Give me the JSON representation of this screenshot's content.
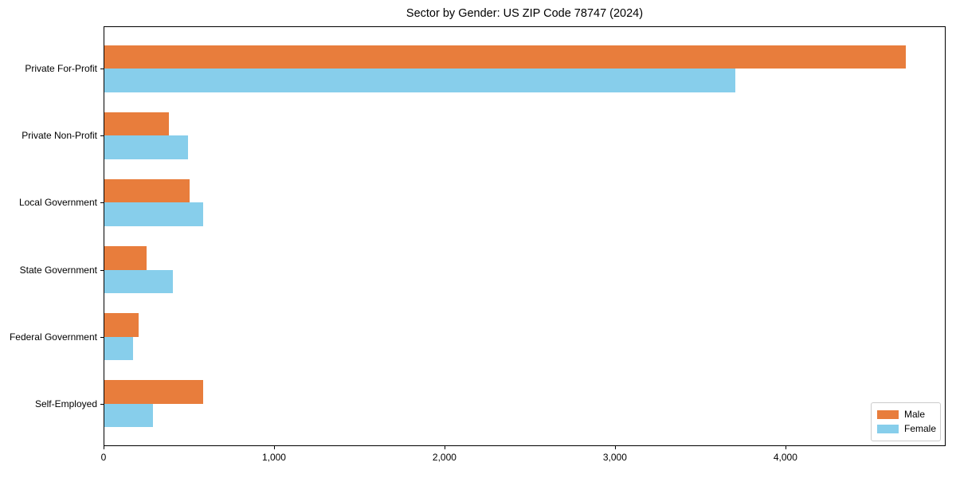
{
  "chart_data": {
    "type": "bar",
    "orientation": "horizontal",
    "title": "Sector by Gender: US ZIP Code 78747 (2024)",
    "categories": [
      "Private For-Profit",
      "Private Non-Profit",
      "Local Government",
      "State Government",
      "Federal Government",
      "Self-Employed"
    ],
    "series": [
      {
        "name": "Male",
        "color": "#E87D3C",
        "values": [
          4700,
          380,
          500,
          250,
          200,
          580
        ]
      },
      {
        "name": "Female",
        "color": "#87CEEB",
        "values": [
          3700,
          490,
          580,
          400,
          170,
          285
        ]
      }
    ],
    "xlabel": "",
    "ylabel": "",
    "xlim": [
      0,
      4940
    ],
    "xticks": [
      0,
      1000,
      2000,
      3000,
      4000
    ],
    "xtick_labels": [
      "0",
      "1,000",
      "2,000",
      "3,000",
      "4,000"
    ],
    "legend_position": "lower-right",
    "grid": false
  }
}
